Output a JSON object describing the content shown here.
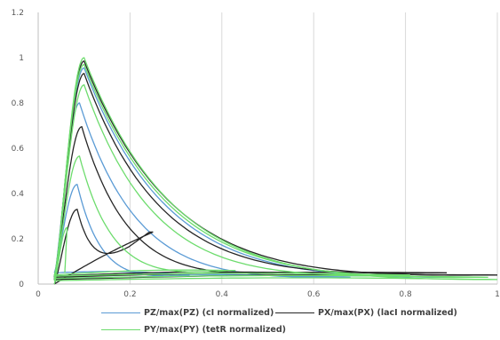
{
  "chart_data": {
    "type": "line",
    "xlim": [
      0,
      1
    ],
    "ylim": [
      0,
      1.2
    ],
    "x_ticks": [
      "0",
      "0.2",
      "0.4",
      "0.6",
      "0.8",
      "1"
    ],
    "y_ticks": [
      "0",
      "0.2",
      "0.4",
      "0.6",
      "0.8",
      "1",
      "1.2"
    ],
    "grid": "vertical",
    "legend_position": "bottom",
    "series": [
      {
        "name": "PZ/max(PZ) (cI normalized)",
        "color": "#5b9bd5",
        "loops": [
          {
            "peak_x": 0.085,
            "peak_y": 0.44,
            "right_x": 0.33,
            "right_y": 0.04,
            "floor": 0.05
          },
          {
            "peak_x": 0.09,
            "peak_y": 0.8,
            "right_x": 0.68,
            "right_y": 0.03,
            "floor": 0.035
          },
          {
            "peak_x": 0.1,
            "peak_y": 0.955,
            "right_x": 0.95,
            "right_y": 0.03,
            "floor": 0.025
          }
        ]
      },
      {
        "name": "PX/max(PX) (lacI normalized)",
        "color": "#262626",
        "loops": [
          {
            "peak_x": 0.085,
            "peak_y": 0.33,
            "right_x": 0.25,
            "right_y": 0.23,
            "floor": 0.0
          },
          {
            "peak_x": 0.095,
            "peak_y": 0.695,
            "right_x": 0.57,
            "right_y": 0.05,
            "floor": 0.035
          },
          {
            "peak_x": 0.1,
            "peak_y": 0.93,
            "right_x": 0.89,
            "right_y": 0.05,
            "floor": 0.03
          },
          {
            "peak_x": 0.1,
            "peak_y": 0.985,
            "right_x": 1.0,
            "right_y": 0.04,
            "floor": 0.02
          }
        ]
      },
      {
        "name": "PY/max(PY) (tetR normalized)",
        "color": "#6ddc6d",
        "loops": [
          {
            "peak_x": 0.063,
            "peak_y": 0.25,
            "right_x": 0.063,
            "right_y": 0.25,
            "floor": 0.0
          },
          {
            "peak_x": 0.09,
            "peak_y": 0.565,
            "right_x": 0.43,
            "right_y": 0.06,
            "floor": 0.04
          },
          {
            "peak_x": 0.1,
            "peak_y": 0.88,
            "right_x": 0.81,
            "right_y": 0.04,
            "floor": 0.035
          },
          {
            "peak_x": 0.1,
            "peak_y": 0.97,
            "right_x": 0.98,
            "right_y": 0.03,
            "floor": 0.025
          },
          {
            "peak_x": 0.1,
            "peak_y": 1.0,
            "right_x": 1.0,
            "right_y": 0.02,
            "floor": 0.015
          }
        ]
      }
    ]
  }
}
